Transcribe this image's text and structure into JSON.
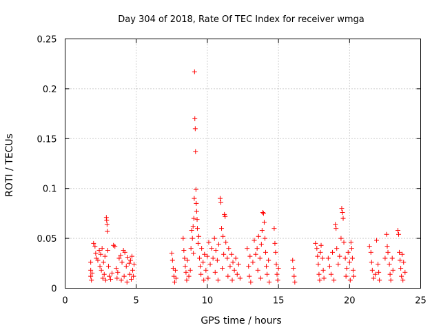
{
  "chart_data": {
    "type": "scatter",
    "title": "Day 304 of 2018, Rate Of TEC Index for receiver wmga",
    "xlabel": "GPS time / hours",
    "ylabel": "ROTI / TECUs",
    "xlim": [
      0,
      25
    ],
    "ylim": [
      0,
      0.25
    ],
    "x_ticks": [
      0,
      5,
      10,
      15,
      20,
      25
    ],
    "x_tick_labels": [
      "0",
      "5",
      "10",
      "15",
      "20",
      "25"
    ],
    "y_ticks": [
      0,
      0.05,
      0.1,
      0.15,
      0.2,
      0.25
    ],
    "y_tick_labels": [
      "0",
      "0.05",
      "0.1",
      "0.15",
      "0.2",
      "0.25"
    ],
    "grid": true,
    "marker": "plus",
    "series": [
      {
        "name": "ROTI",
        "color": "#ff0000",
        "points": [
          [
            1.8,
            0.026
          ],
          [
            1.8,
            0.018
          ],
          [
            1.8,
            0.012
          ],
          [
            1.85,
            0.008
          ],
          [
            1.9,
            0.015
          ],
          [
            2.0,
            0.045
          ],
          [
            2.1,
            0.042
          ],
          [
            2.15,
            0.035
          ],
          [
            2.2,
            0.03
          ],
          [
            2.3,
            0.028
          ],
          [
            2.4,
            0.038
          ],
          [
            2.45,
            0.022
          ],
          [
            2.5,
            0.034
          ],
          [
            2.55,
            0.018
          ],
          [
            2.6,
            0.04
          ],
          [
            2.65,
            0.01
          ],
          [
            2.7,
            0.026
          ],
          [
            2.75,
            0.014
          ],
          [
            2.8,
            0.032
          ],
          [
            2.85,
            0.008
          ],
          [
            2.9,
            0.071
          ],
          [
            2.92,
            0.068
          ],
          [
            2.95,
            0.064
          ],
          [
            2.97,
            0.057
          ],
          [
            3.0,
            0.038
          ],
          [
            3.05,
            0.022
          ],
          [
            3.1,
            0.012
          ],
          [
            3.2,
            0.009
          ],
          [
            3.3,
            0.015
          ],
          [
            3.4,
            0.043
          ],
          [
            3.5,
            0.042
          ],
          [
            3.6,
            0.02
          ],
          [
            3.65,
            0.01
          ],
          [
            3.7,
            0.016
          ],
          [
            3.8,
            0.03
          ],
          [
            3.9,
            0.033
          ],
          [
            3.95,
            0.008
          ],
          [
            4.0,
            0.026
          ],
          [
            4.1,
            0.038
          ],
          [
            4.15,
            0.012
          ],
          [
            4.2,
            0.036
          ],
          [
            4.3,
            0.022
          ],
          [
            4.35,
            0.006
          ],
          [
            4.4,
            0.031
          ],
          [
            4.5,
            0.025
          ],
          [
            4.55,
            0.014
          ],
          [
            4.6,
            0.028
          ],
          [
            4.65,
            0.009
          ],
          [
            4.7,
            0.032
          ],
          [
            4.75,
            0.018
          ],
          [
            4.8,
            0.012
          ],
          [
            4.85,
            0.024
          ],
          [
            7.5,
            0.035
          ],
          [
            7.55,
            0.028
          ],
          [
            7.6,
            0.02
          ],
          [
            7.65,
            0.012
          ],
          [
            7.7,
            0.006
          ],
          [
            7.75,
            0.018
          ],
          [
            7.8,
            0.01
          ],
          [
            8.3,
            0.05
          ],
          [
            8.35,
            0.038
          ],
          [
            8.4,
            0.03
          ],
          [
            8.45,
            0.022
          ],
          [
            8.5,
            0.016
          ],
          [
            8.55,
            0.008
          ],
          [
            8.6,
            0.028
          ],
          [
            8.7,
            0.012
          ],
          [
            8.8,
            0.018
          ],
          [
            8.85,
            0.04
          ],
          [
            8.9,
            0.058
          ],
          [
            8.95,
            0.05
          ],
          [
            9.0,
            0.062
          ],
          [
            9.02,
            0.035
          ],
          [
            9.05,
            0.07
          ],
          [
            9.08,
            0.09
          ],
          [
            9.1,
            0.217
          ],
          [
            9.12,
            0.17
          ],
          [
            9.15,
            0.16
          ],
          [
            9.17,
            0.137
          ],
          [
            9.2,
            0.099
          ],
          [
            9.22,
            0.085
          ],
          [
            9.25,
            0.077
          ],
          [
            9.28,
            0.069
          ],
          [
            9.3,
            0.06
          ],
          [
            9.35,
            0.045
          ],
          [
            9.4,
            0.052
          ],
          [
            9.45,
            0.03
          ],
          [
            9.5,
            0.022
          ],
          [
            9.55,
            0.014
          ],
          [
            9.6,
            0.04
          ],
          [
            9.7,
            0.026
          ],
          [
            9.75,
            0.008
          ],
          [
            9.8,
            0.034
          ],
          [
            9.9,
            0.018
          ],
          [
            10.0,
            0.032
          ],
          [
            10.05,
            0.01
          ],
          [
            10.1,
            0.046
          ],
          [
            10.2,
            0.024
          ],
          [
            10.3,
            0.04
          ],
          [
            10.4,
            0.03
          ],
          [
            10.5,
            0.05
          ],
          [
            10.55,
            0.016
          ],
          [
            10.6,
            0.038
          ],
          [
            10.7,
            0.028
          ],
          [
            10.75,
            0.008
          ],
          [
            10.8,
            0.044
          ],
          [
            10.9,
            0.09
          ],
          [
            10.95,
            0.086
          ],
          [
            11.0,
            0.06
          ],
          [
            11.05,
            0.02
          ],
          [
            11.1,
            0.052
          ],
          [
            11.15,
            0.034
          ],
          [
            11.2,
            0.074
          ],
          [
            11.25,
            0.072
          ],
          [
            11.3,
            0.046
          ],
          [
            11.4,
            0.03
          ],
          [
            11.45,
            0.012
          ],
          [
            11.5,
            0.04
          ],
          [
            11.6,
            0.022
          ],
          [
            11.7,
            0.034
          ],
          [
            11.75,
            0.008
          ],
          [
            11.8,
            0.026
          ],
          [
            11.9,
            0.018
          ],
          [
            12.0,
            0.03
          ],
          [
            12.1,
            0.014
          ],
          [
            12.2,
            0.024
          ],
          [
            12.3,
            0.01
          ],
          [
            12.8,
            0.04
          ],
          [
            12.9,
            0.022
          ],
          [
            12.95,
            0.012
          ],
          [
            13.0,
            0.032
          ],
          [
            13.05,
            0.006
          ],
          [
            13.2,
            0.026
          ],
          [
            13.3,
            0.048
          ],
          [
            13.4,
            0.034
          ],
          [
            13.5,
            0.04
          ],
          [
            13.55,
            0.018
          ],
          [
            13.6,
            0.052
          ],
          [
            13.7,
            0.03
          ],
          [
            13.75,
            0.01
          ],
          [
            13.8,
            0.044
          ],
          [
            13.85,
            0.058
          ],
          [
            13.9,
            0.076
          ],
          [
            13.95,
            0.075
          ],
          [
            14.0,
            0.066
          ],
          [
            14.05,
            0.05
          ],
          [
            14.1,
            0.036
          ],
          [
            14.15,
            0.022
          ],
          [
            14.2,
            0.014
          ],
          [
            14.3,
            0.028
          ],
          [
            14.35,
            0.006
          ],
          [
            14.7,
            0.06
          ],
          [
            14.75,
            0.045
          ],
          [
            14.8,
            0.036
          ],
          [
            14.85,
            0.024
          ],
          [
            14.9,
            0.014
          ],
          [
            14.95,
            0.008
          ],
          [
            15.0,
            0.02
          ],
          [
            16.0,
            0.028
          ],
          [
            16.05,
            0.02
          ],
          [
            16.1,
            0.012
          ],
          [
            16.15,
            0.006
          ],
          [
            17.6,
            0.045
          ],
          [
            17.7,
            0.04
          ],
          [
            17.75,
            0.032
          ],
          [
            17.8,
            0.024
          ],
          [
            17.85,
            0.014
          ],
          [
            17.9,
            0.008
          ],
          [
            17.95,
            0.036
          ],
          [
            18.0,
            0.043
          ],
          [
            18.1,
            0.03
          ],
          [
            18.15,
            0.018
          ],
          [
            18.2,
            0.01
          ],
          [
            18.5,
            0.03
          ],
          [
            18.6,
            0.022
          ],
          [
            18.7,
            0.014
          ],
          [
            18.8,
            0.036
          ],
          [
            18.9,
            0.008
          ],
          [
            19.0,
            0.064
          ],
          [
            19.05,
            0.06
          ],
          [
            19.1,
            0.04
          ],
          [
            19.2,
            0.024
          ],
          [
            19.3,
            0.032
          ],
          [
            19.4,
            0.05
          ],
          [
            19.45,
            0.08
          ],
          [
            19.5,
            0.076
          ],
          [
            19.55,
            0.07
          ],
          [
            19.6,
            0.046
          ],
          [
            19.7,
            0.03
          ],
          [
            19.75,
            0.012
          ],
          [
            19.8,
            0.02
          ],
          [
            19.9,
            0.036
          ],
          [
            20.0,
            0.026
          ],
          [
            20.05,
            0.008
          ],
          [
            20.1,
            0.046
          ],
          [
            20.15,
            0.04
          ],
          [
            20.2,
            0.03
          ],
          [
            20.25,
            0.018
          ],
          [
            20.3,
            0.012
          ],
          [
            21.4,
            0.042
          ],
          [
            21.5,
            0.036
          ],
          [
            21.55,
            0.026
          ],
          [
            21.6,
            0.018
          ],
          [
            21.7,
            0.01
          ],
          [
            21.8,
            0.014
          ],
          [
            21.9,
            0.048
          ],
          [
            22.0,
            0.024
          ],
          [
            22.05,
            0.016
          ],
          [
            22.1,
            0.008
          ],
          [
            22.5,
            0.03
          ],
          [
            22.6,
            0.054
          ],
          [
            22.65,
            0.042
          ],
          [
            22.7,
            0.036
          ],
          [
            22.8,
            0.024
          ],
          [
            22.85,
            0.014
          ],
          [
            22.9,
            0.008
          ],
          [
            23.0,
            0.03
          ],
          [
            23.05,
            0.018
          ],
          [
            23.4,
            0.058
          ],
          [
            23.45,
            0.054
          ],
          [
            23.5,
            0.036
          ],
          [
            23.55,
            0.028
          ],
          [
            23.6,
            0.02
          ],
          [
            23.65,
            0.012
          ],
          [
            23.7,
            0.034
          ],
          [
            23.75,
            0.008
          ],
          [
            23.8,
            0.026
          ],
          [
            23.9,
            0.016
          ]
        ]
      }
    ]
  }
}
